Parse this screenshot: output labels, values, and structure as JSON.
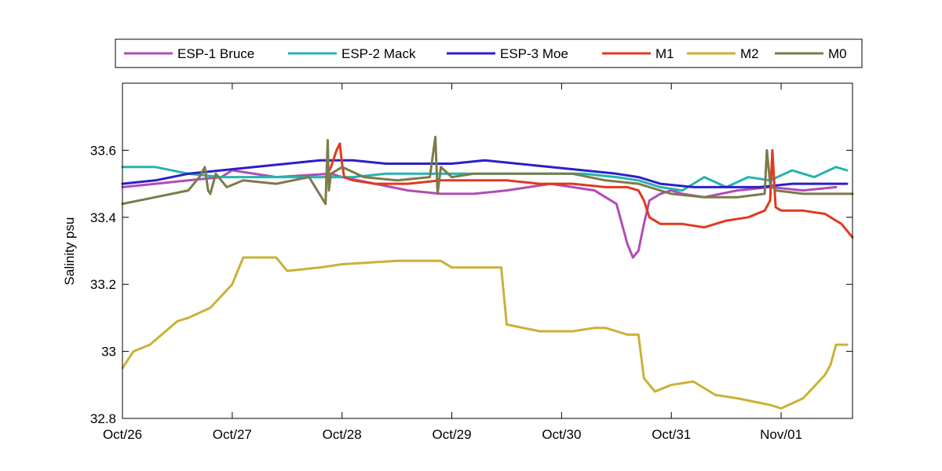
{
  "chart_data": {
    "type": "line",
    "title": "",
    "xlabel": "",
    "ylabel": "Salinity psu",
    "x_unit": "days since Oct/26 00:00",
    "xlim": [
      0,
      6.65
    ],
    "ylim": [
      32.8,
      33.8
    ],
    "x_ticks": [
      {
        "value": 0,
        "label": "Oct/26"
      },
      {
        "value": 1,
        "label": "Oct/27"
      },
      {
        "value": 2,
        "label": "Oct/28"
      },
      {
        "value": 3,
        "label": "Oct/29"
      },
      {
        "value": 4,
        "label": "Oct/30"
      },
      {
        "value": 5,
        "label": "Oct/31"
      },
      {
        "value": 6,
        "label": "Nov/01"
      }
    ],
    "y_ticks": [
      {
        "value": 32.8,
        "label": "32.8"
      },
      {
        "value": 33.0,
        "label": "33"
      },
      {
        "value": 33.2,
        "label": "33.2"
      },
      {
        "value": 33.4,
        "label": "33.4"
      },
      {
        "value": 33.6,
        "label": "33.6"
      }
    ],
    "grid": false,
    "legend_position": "top, horizontal, outside plot",
    "series": [
      {
        "name": "ESP-1 Bruce",
        "color": "#b04cb8",
        "x": [
          0,
          0.3,
          0.6,
          0.9,
          1.0,
          1.4,
          1.9,
          2.0,
          2.3,
          2.6,
          2.9,
          3.2,
          3.5,
          3.7,
          3.9,
          4.1,
          4.3,
          4.4,
          4.5,
          4.55,
          4.6,
          4.65,
          4.7,
          4.75,
          4.8,
          4.9,
          5.0,
          5.1,
          5.3,
          5.6,
          5.9,
          6.2,
          6.5
        ],
        "y": [
          33.49,
          33.5,
          33.51,
          33.52,
          33.54,
          33.52,
          33.53,
          33.52,
          33.5,
          33.48,
          33.47,
          33.47,
          33.48,
          33.49,
          33.5,
          33.49,
          33.48,
          33.46,
          33.44,
          33.38,
          33.32,
          33.28,
          33.3,
          33.38,
          33.45,
          33.47,
          33.48,
          33.47,
          33.46,
          33.48,
          33.49,
          33.48,
          33.49
        ]
      },
      {
        "name": "ESP-2 Mack",
        "color": "#27b3ad",
        "x": [
          0,
          0.3,
          0.6,
          0.9,
          1.2,
          1.5,
          1.8,
          2.1,
          2.4,
          2.7,
          3.0,
          3.3,
          3.6,
          3.9,
          4.2,
          4.5,
          4.7,
          4.9,
          5.1,
          5.3,
          5.5,
          5.7,
          5.9,
          6.1,
          6.3,
          6.5,
          6.6
        ],
        "y": [
          33.55,
          33.55,
          33.53,
          33.52,
          33.52,
          33.52,
          33.52,
          33.52,
          33.53,
          33.53,
          33.53,
          33.53,
          33.53,
          33.53,
          33.53,
          33.52,
          33.51,
          33.49,
          33.48,
          33.52,
          33.49,
          33.52,
          33.51,
          33.54,
          33.52,
          33.55,
          33.54
        ]
      },
      {
        "name": "ESP-3 Moe",
        "color": "#2b20c8",
        "x": [
          0,
          0.3,
          0.6,
          0.9,
          1.2,
          1.5,
          1.8,
          2.1,
          2.4,
          2.7,
          3.0,
          3.3,
          3.6,
          3.9,
          4.2,
          4.5,
          4.7,
          4.9,
          5.2,
          5.5,
          5.8,
          6.1,
          6.4,
          6.6
        ],
        "y": [
          33.5,
          33.51,
          33.53,
          33.54,
          33.55,
          33.56,
          33.57,
          33.57,
          33.56,
          33.56,
          33.56,
          33.57,
          33.56,
          33.55,
          33.54,
          33.53,
          33.52,
          33.5,
          33.49,
          33.49,
          33.49,
          33.5,
          33.5,
          33.5
        ]
      },
      {
        "name": "M1",
        "color": "#e03a1f",
        "x": [
          1.85,
          1.9,
          1.95,
          1.98,
          2.0,
          2.02,
          2.1,
          2.3,
          2.6,
          2.9,
          3.2,
          3.5,
          3.8,
          4.1,
          4.4,
          4.6,
          4.7,
          4.75,
          4.8,
          4.9,
          5.1,
          5.3,
          5.5,
          5.7,
          5.85,
          5.9,
          5.92,
          5.95,
          6.0,
          6.2,
          6.4,
          6.55,
          6.65
        ],
        "y": [
          33.52,
          33.55,
          33.6,
          33.62,
          33.56,
          33.52,
          33.51,
          33.5,
          33.5,
          33.51,
          33.51,
          33.51,
          33.5,
          33.5,
          33.49,
          33.49,
          33.48,
          33.45,
          33.4,
          33.38,
          33.38,
          33.37,
          33.39,
          33.4,
          33.42,
          33.45,
          33.6,
          33.43,
          33.42,
          33.42,
          33.41,
          33.38,
          33.34
        ]
      },
      {
        "name": "M2",
        "color": "#c9b237",
        "x": [
          0,
          0.1,
          0.25,
          0.5,
          0.6,
          0.8,
          1.0,
          1.1,
          1.4,
          1.5,
          1.8,
          2.0,
          2.5,
          2.9,
          3.0,
          3.3,
          3.45,
          3.5,
          3.8,
          4.1,
          4.3,
          4.4,
          4.6,
          4.7,
          4.75,
          4.85,
          5.0,
          5.2,
          5.4,
          5.6,
          5.9,
          6.0,
          6.2,
          6.4,
          6.45,
          6.5,
          6.6
        ],
        "y": [
          32.95,
          33.0,
          33.02,
          33.09,
          33.1,
          33.13,
          33.2,
          33.28,
          33.28,
          33.24,
          33.25,
          33.26,
          33.27,
          33.27,
          33.25,
          33.25,
          33.25,
          33.08,
          33.06,
          33.06,
          33.07,
          33.07,
          33.05,
          33.05,
          32.92,
          32.88,
          32.9,
          32.91,
          32.87,
          32.86,
          32.84,
          32.83,
          32.86,
          32.93,
          32.96,
          33.02,
          33.02
        ]
      },
      {
        "name": "M0",
        "color": "#7d7a4c",
        "x": [
          0,
          0.3,
          0.6,
          0.7,
          0.75,
          0.78,
          0.8,
          0.85,
          0.95,
          1.1,
          1.4,
          1.7,
          1.85,
          1.87,
          1.88,
          1.9,
          2.0,
          2.2,
          2.5,
          2.8,
          2.85,
          2.87,
          2.9,
          3.0,
          3.2,
          3.5,
          3.8,
          4.1,
          4.4,
          4.7,
          5.0,
          5.3,
          5.6,
          5.85,
          5.87,
          5.9,
          5.95,
          6.2,
          6.5,
          6.65
        ],
        "y": [
          33.44,
          33.46,
          33.48,
          33.52,
          33.55,
          33.48,
          33.47,
          33.53,
          33.49,
          33.51,
          33.5,
          33.52,
          33.44,
          33.63,
          33.48,
          33.53,
          33.55,
          33.52,
          33.51,
          33.52,
          33.64,
          33.47,
          33.55,
          33.52,
          33.53,
          33.53,
          33.53,
          33.53,
          33.51,
          33.5,
          33.47,
          33.46,
          33.46,
          33.47,
          33.6,
          33.5,
          33.48,
          33.47,
          33.47,
          33.47
        ]
      }
    ]
  }
}
